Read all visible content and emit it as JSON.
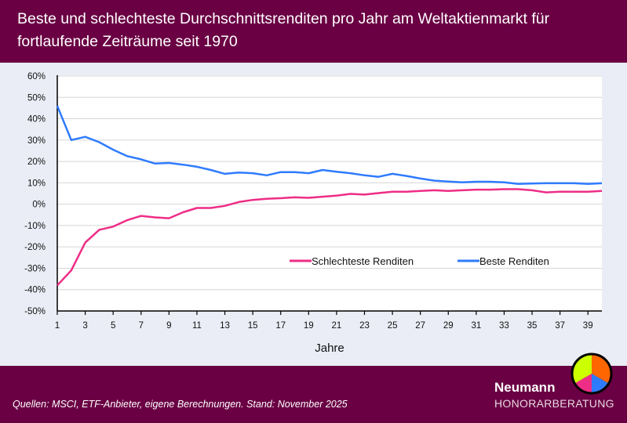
{
  "header": {
    "title": "Beste und schlechteste Durchschnittsrenditen pro Jahr am Weltaktienmarkt für fortlaufende Zeiträume seit 1970"
  },
  "footer": {
    "source": "Quellen: MSCI, ETF-Anbieter, eigene Berechnungen. Stand: November 2025",
    "brand_name": "Neumann",
    "brand_sub": "HONORARBERATUNG",
    "logo_colors": [
      "#ccff00",
      "#ff6600",
      "#ee2d86",
      "#2f7bff"
    ]
  },
  "chart_data": {
    "type": "line",
    "title": "Beste und schlechteste Durchschnittsrenditen pro Jahr am Weltaktienmarkt für fortlaufende Zeiträume seit 1970",
    "xlabel": "Jahre",
    "ylabel": "",
    "xlim": [
      1,
      40
    ],
    "ylim": [
      -50,
      60
    ],
    "yticks": [
      "60%",
      "50%",
      "40%",
      "30%",
      "20%",
      "10%",
      "0%",
      "-10%",
      "-20%",
      "-30%",
      "-40%",
      "-50%"
    ],
    "xticks": [
      "1",
      "3",
      "5",
      "7",
      "9",
      "11",
      "13",
      "15",
      "17",
      "19",
      "21",
      "23",
      "25",
      "27",
      "29",
      "31",
      "33",
      "35",
      "37",
      "39"
    ],
    "grid": true,
    "legend_position": "bottom-right",
    "x": [
      1,
      2,
      3,
      4,
      5,
      6,
      7,
      8,
      9,
      10,
      11,
      12,
      13,
      14,
      15,
      16,
      17,
      18,
      19,
      20,
      21,
      22,
      23,
      24,
      25,
      26,
      27,
      28,
      29,
      30,
      31,
      32,
      33,
      34,
      35,
      36,
      37,
      38,
      39,
      40
    ],
    "series": [
      {
        "name": "Schlechteste Renditen",
        "color": "#ee2d86",
        "values": [
          -38,
          -31,
          -18,
          -12,
          -10.5,
          -7.5,
          -5.5,
          -6.2,
          -6.6,
          -3.8,
          -1.8,
          -1.8,
          -0.8,
          1,
          2,
          2.5,
          2.8,
          3.2,
          3,
          3.5,
          4,
          4.8,
          4.5,
          5.2,
          5.8,
          5.8,
          6.2,
          6.5,
          6.2,
          6.5,
          6.8,
          6.8,
          7,
          7,
          6.5,
          5.5,
          5.8,
          5.8,
          5.8,
          6.2
        ]
      },
      {
        "name": "Beste Renditen",
        "color": "#2f7bff",
        "values": [
          46,
          30,
          31.5,
          29,
          25.5,
          22.5,
          21,
          19,
          19.3,
          18.5,
          17.5,
          16,
          14.2,
          14.8,
          14.5,
          13.5,
          15,
          15,
          14.5,
          16,
          15.2,
          14.5,
          13.5,
          12.8,
          14.2,
          13.2,
          12,
          11,
          10.6,
          10.2,
          10.5,
          10.5,
          10.2,
          9.5,
          9.7,
          9.8,
          9.8,
          9.8,
          9.5,
          9.8
        ]
      }
    ]
  }
}
